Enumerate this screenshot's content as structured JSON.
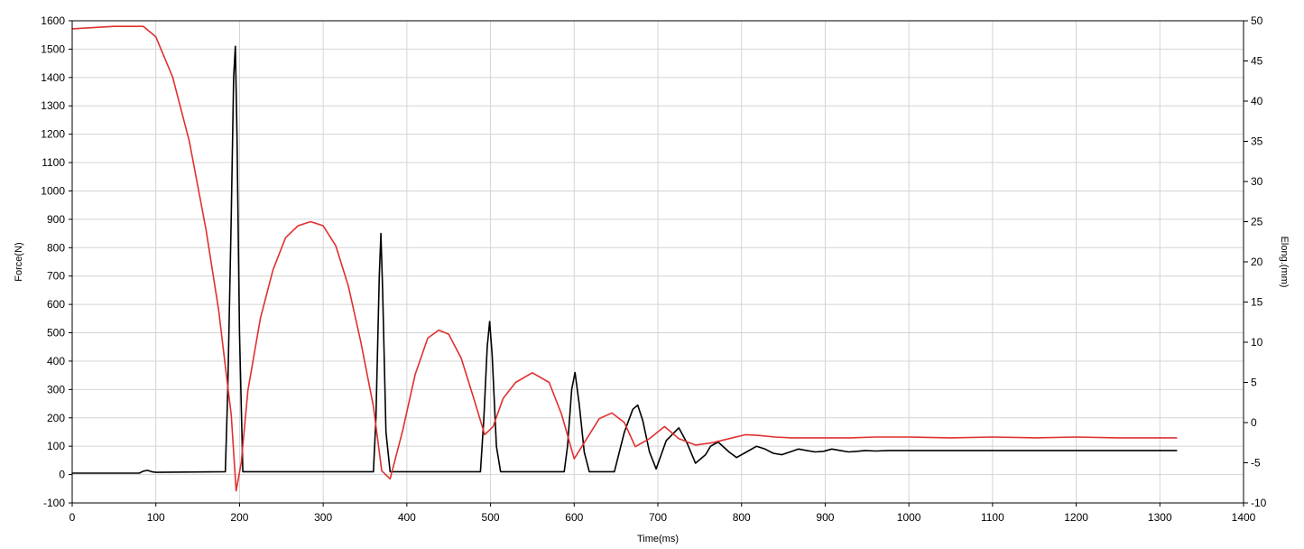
{
  "chart_data": {
    "type": "line",
    "xlabel": "Time(ms)",
    "ylabel": "Force(N)",
    "y2label": "Elong.(mm)",
    "xlim": [
      0,
      1400
    ],
    "ylim": [
      -100,
      1600
    ],
    "y2lim": [
      -10,
      50
    ],
    "grid": true,
    "xticks": [
      0,
      100,
      200,
      300,
      400,
      500,
      600,
      700,
      800,
      900,
      1000,
      1100,
      1200,
      1300,
      1400
    ],
    "xtick_labels": [
      "0",
      "100",
      "200",
      "300",
      "400",
      "500",
      "600",
      "700",
      "800",
      "900",
      "1000",
      "1100",
      "1200",
      "1300",
      "1400"
    ],
    "yticks": [
      -100,
      0,
      100,
      200,
      300,
      400,
      500,
      600,
      700,
      800,
      900,
      1000,
      1100,
      1200,
      1300,
      1400,
      1500,
      1600
    ],
    "ytick_labels": [
      "-100",
      "0",
      "100",
      "200",
      "300",
      "400",
      "500",
      "600",
      "700",
      "800",
      "900",
      "1000",
      "1100",
      "1200",
      "1300",
      "1400",
      "1500",
      "1600"
    ],
    "y2ticks": [
      -10,
      -5,
      0,
      5,
      10,
      15,
      20,
      25,
      30,
      35,
      40,
      45,
      50
    ],
    "y2tick_labels": [
      "-10",
      "-5",
      "0",
      "5",
      "10",
      "15",
      "20",
      "25",
      "30",
      "35",
      "40",
      "45",
      "50"
    ],
    "series": [
      {
        "axis": "left",
        "color": "#000000",
        "x": [
          0,
          80,
          85,
          90,
          95,
          100,
          183,
          186,
          190,
          193,
          195,
          197,
          200,
          204,
          208,
          360,
          363,
          367,
          369,
          371,
          375,
          380,
          488,
          492,
          496,
          499,
          502,
          507,
          512,
          588,
          592,
          597,
          601,
          606,
          612,
          618,
          648,
          660,
          670,
          676,
          682,
          690,
          698,
          710,
          725,
          735,
          745,
          757,
          763,
          772,
          785,
          794,
          806,
          818,
          828,
          838,
          848,
          858,
          868,
          878,
          888,
          898,
          908,
          918,
          928,
          938,
          948,
          960,
          975,
          990,
          1010,
          1050,
          1100,
          1150,
          1200,
          1250,
          1320
        ],
        "y": [
          5,
          5,
          12,
          15,
          10,
          8,
          10,
          300,
          900,
          1400,
          1510,
          1200,
          500,
          10,
          10,
          10,
          200,
          700,
          850,
          650,
          150,
          10,
          10,
          200,
          450,
          540,
          420,
          100,
          10,
          10,
          100,
          300,
          360,
          250,
          80,
          10,
          10,
          150,
          230,
          245,
          190,
          80,
          20,
          120,
          165,
          110,
          40,
          70,
          100,
          115,
          80,
          60,
          80,
          100,
          90,
          75,
          70,
          80,
          90,
          85,
          80,
          82,
          90,
          85,
          80,
          82,
          85,
          83,
          85,
          85,
          85,
          85,
          85,
          85,
          85,
          85,
          85
        ]
      },
      {
        "axis": "right",
        "color": "#e03030",
        "x": [
          0,
          50,
          85,
          100,
          120,
          140,
          160,
          175,
          183,
          190,
          196,
          202,
          210,
          225,
          240,
          255,
          270,
          285,
          300,
          315,
          330,
          345,
          360,
          370,
          380,
          395,
          410,
          425,
          438,
          450,
          465,
          480,
          493,
          503,
          515,
          530,
          550,
          570,
          585,
          600,
          615,
          630,
          645,
          660,
          673,
          690,
          708,
          725,
          745,
          765,
          785,
          805,
          820,
          840,
          860,
          880,
          900,
          930,
          960,
          1000,
          1050,
          1100,
          1150,
          1200,
          1250,
          1320
        ],
        "y": [
          49,
          49.3,
          49.3,
          48,
          43,
          35,
          24,
          14,
          7,
          1,
          -8.5,
          -5,
          4,
          13,
          19,
          23,
          24.5,
          25,
          24.5,
          22,
          17,
          10,
          2,
          -6,
          -7,
          -1,
          6,
          10.5,
          11.5,
          11,
          8,
          3,
          -1.5,
          -0.5,
          3,
          5,
          6.2,
          5,
          1,
          -4.5,
          -2,
          0.5,
          1.2,
          0,
          -3,
          -2,
          -0.5,
          -2,
          -2.8,
          -2.5,
          -2,
          -1.5,
          -1.6,
          -1.8,
          -1.9,
          -1.9,
          -1.9,
          -1.9,
          -1.8,
          -1.8,
          -1.9,
          -1.8,
          -1.9,
          -1.8,
          -1.9,
          -1.9
        ]
      }
    ]
  }
}
